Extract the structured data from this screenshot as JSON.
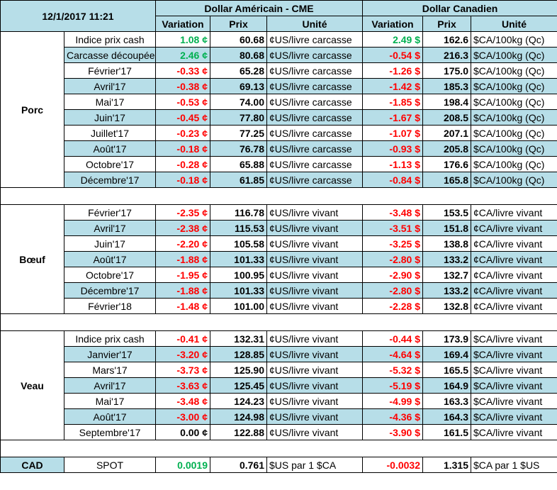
{
  "header": {
    "date": "12/1/2017 11:21",
    "us_title": "Dollar Américain - CME",
    "ca_title": "Dollar Canadien",
    "col_variation": "Variation",
    "col_prix": "Prix",
    "col_unite": "Unité"
  },
  "colors": {
    "negative": "#ff0000",
    "positive": "#00b050",
    "band": "#b7dee8"
  },
  "groups": [
    {
      "label": "Porc",
      "rows": [
        {
          "contract": "Indice prix cash",
          "us_var": "1.08 ¢",
          "us_sign": "pos",
          "us_price": "60.68",
          "us_unit": "¢US/livre carcasse",
          "ca_var": "2.49 $",
          "ca_sign": "pos",
          "ca_price": "162.6",
          "ca_unit": "$CA/100kg (Qc)"
        },
        {
          "contract": "Carcasse découpée",
          "us_var": "2.46 ¢",
          "us_sign": "pos",
          "us_price": "80.68",
          "us_unit": "¢US/livre carcasse",
          "ca_var": "-0.54 $",
          "ca_sign": "neg",
          "ca_price": "216.3",
          "ca_unit": "$CA/100kg (Qc)"
        },
        {
          "contract": "Février'17",
          "us_var": "-0.33 ¢",
          "us_sign": "neg",
          "us_price": "65.28",
          "us_unit": "¢US/livre carcasse",
          "ca_var": "-1.26 $",
          "ca_sign": "neg",
          "ca_price": "175.0",
          "ca_unit": "$CA/100kg (Qc)"
        },
        {
          "contract": "Avril'17",
          "us_var": "-0.38 ¢",
          "us_sign": "neg",
          "us_price": "69.13",
          "us_unit": "¢US/livre carcasse",
          "ca_var": "-1.42 $",
          "ca_sign": "neg",
          "ca_price": "185.3",
          "ca_unit": "$CA/100kg (Qc)"
        },
        {
          "contract": "Mai'17",
          "us_var": "-0.53 ¢",
          "us_sign": "neg",
          "us_price": "74.00",
          "us_unit": "¢US/livre carcasse",
          "ca_var": "-1.85 $",
          "ca_sign": "neg",
          "ca_price": "198.4",
          "ca_unit": "$CA/100kg (Qc)"
        },
        {
          "contract": "Juin'17",
          "us_var": "-0.45 ¢",
          "us_sign": "neg",
          "us_price": "77.80",
          "us_unit": "¢US/livre carcasse",
          "ca_var": "-1.67 $",
          "ca_sign": "neg",
          "ca_price": "208.5",
          "ca_unit": "$CA/100kg (Qc)"
        },
        {
          "contract": "Juillet'17",
          "us_var": "-0.23 ¢",
          "us_sign": "neg",
          "us_price": "77.25",
          "us_unit": "¢US/livre carcasse",
          "ca_var": "-1.07 $",
          "ca_sign": "neg",
          "ca_price": "207.1",
          "ca_unit": "$CA/100kg (Qc)"
        },
        {
          "contract": "Août'17",
          "us_var": "-0.18 ¢",
          "us_sign": "neg",
          "us_price": "76.78",
          "us_unit": "¢US/livre carcasse",
          "ca_var": "-0.93 $",
          "ca_sign": "neg",
          "ca_price": "205.8",
          "ca_unit": "$CA/100kg (Qc)"
        },
        {
          "contract": "Octobre'17",
          "us_var": "-0.28 ¢",
          "us_sign": "neg",
          "us_price": "65.88",
          "us_unit": "¢US/livre carcasse",
          "ca_var": "-1.13 $",
          "ca_sign": "neg",
          "ca_price": "176.6",
          "ca_unit": "$CA/100kg (Qc)"
        },
        {
          "contract": "Décembre'17",
          "us_var": "-0.18 ¢",
          "us_sign": "neg",
          "us_price": "61.85",
          "us_unit": "¢US/livre carcasse",
          "ca_var": "-0.84 $",
          "ca_sign": "neg",
          "ca_price": "165.8",
          "ca_unit": "$CA/100kg (Qc)"
        }
      ]
    },
    {
      "label": "Bœuf",
      "rows": [
        {
          "contract": "Février'17",
          "us_var": "-2.35 ¢",
          "us_sign": "neg",
          "us_price": "116.78",
          "us_unit": "¢US/livre vivant",
          "ca_var": "-3.48 $",
          "ca_sign": "neg",
          "ca_price": "153.5",
          "ca_unit": "¢CA/livre vivant"
        },
        {
          "contract": "Avril'17",
          "us_var": "-2.38 ¢",
          "us_sign": "neg",
          "us_price": "115.53",
          "us_unit": "¢US/livre vivant",
          "ca_var": "-3.51 $",
          "ca_sign": "neg",
          "ca_price": "151.8",
          "ca_unit": "¢CA/livre vivant"
        },
        {
          "contract": "Juin'17",
          "us_var": "-2.20 ¢",
          "us_sign": "neg",
          "us_price": "105.58",
          "us_unit": "¢US/livre vivant",
          "ca_var": "-3.25 $",
          "ca_sign": "neg",
          "ca_price": "138.8",
          "ca_unit": "¢CA/livre vivant"
        },
        {
          "contract": "Août'17",
          "us_var": "-1.88 ¢",
          "us_sign": "neg",
          "us_price": "101.33",
          "us_unit": "¢US/livre vivant",
          "ca_var": "-2.80 $",
          "ca_sign": "neg",
          "ca_price": "133.2",
          "ca_unit": "¢CA/livre vivant"
        },
        {
          "contract": "Octobre'17",
          "us_var": "-1.95 ¢",
          "us_sign": "neg",
          "us_price": "100.95",
          "us_unit": "¢US/livre vivant",
          "ca_var": "-2.90 $",
          "ca_sign": "neg",
          "ca_price": "132.7",
          "ca_unit": "¢CA/livre vivant"
        },
        {
          "contract": "Décembre'17",
          "us_var": "-1.88 ¢",
          "us_sign": "neg",
          "us_price": "101.33",
          "us_unit": "¢US/livre vivant",
          "ca_var": "-2.80 $",
          "ca_sign": "neg",
          "ca_price": "133.2",
          "ca_unit": "¢CA/livre vivant"
        },
        {
          "contract": "Février'18",
          "us_var": "-1.48 ¢",
          "us_sign": "neg",
          "us_price": "101.00",
          "us_unit": "¢US/livre vivant",
          "ca_var": "-2.28 $",
          "ca_sign": "neg",
          "ca_price": "132.8",
          "ca_unit": "¢CA/livre vivant"
        }
      ]
    },
    {
      "label": "Veau",
      "rows": [
        {
          "contract": "Indice prix cash",
          "us_var": "-0.41 ¢",
          "us_sign": "neg",
          "us_price": "132.31",
          "us_unit": "¢US/livre vivant",
          "ca_var": "-0.44 $",
          "ca_sign": "neg",
          "ca_price": "173.9",
          "ca_unit": "$CA/livre vivant"
        },
        {
          "contract": "Janvier'17",
          "us_var": "-3.20 ¢",
          "us_sign": "neg",
          "us_price": "128.85",
          "us_unit": "¢US/livre vivant",
          "ca_var": "-4.64 $",
          "ca_sign": "neg",
          "ca_price": "169.4",
          "ca_unit": "$CA/livre vivant"
        },
        {
          "contract": "Mars'17",
          "us_var": "-3.73 ¢",
          "us_sign": "neg",
          "us_price": "125.90",
          "us_unit": "¢US/livre vivant",
          "ca_var": "-5.32 $",
          "ca_sign": "neg",
          "ca_price": "165.5",
          "ca_unit": "$CA/livre vivant"
        },
        {
          "contract": "Avril'17",
          "us_var": "-3.63 ¢",
          "us_sign": "neg",
          "us_price": "125.45",
          "us_unit": "¢US/livre vivant",
          "ca_var": "-5.19 $",
          "ca_sign": "neg",
          "ca_price": "164.9",
          "ca_unit": "$CA/livre vivant"
        },
        {
          "contract": "Mai'17",
          "us_var": "-3.48 ¢",
          "us_sign": "neg",
          "us_price": "124.23",
          "us_unit": "¢US/livre vivant",
          "ca_var": "-4.99 $",
          "ca_sign": "neg",
          "ca_price": "163.3",
          "ca_unit": "$CA/livre vivant"
        },
        {
          "contract": "Août'17",
          "us_var": "-3.00 ¢",
          "us_sign": "neg",
          "us_price": "124.98",
          "us_unit": "¢US/livre vivant",
          "ca_var": "-4.36 $",
          "ca_sign": "neg",
          "ca_price": "164.3",
          "ca_unit": "$CA/livre vivant"
        },
        {
          "contract": "Septembre'17",
          "us_var": "0.00 ¢",
          "us_sign": "zero",
          "us_price": "122.88",
          "us_unit": "¢US/livre vivant",
          "ca_var": "-3.90 $",
          "ca_sign": "neg",
          "ca_price": "161.5",
          "ca_unit": "$CA/livre vivant"
        }
      ]
    }
  ],
  "cad": {
    "label": "CAD",
    "contract": "SPOT",
    "us_var": "0.0019",
    "us_sign": "pos",
    "us_price": "0.761",
    "us_unit": "$US par 1 $CA",
    "ca_var": "-0.0032",
    "ca_sign": "neg",
    "ca_price": "1.315",
    "ca_unit": "$CA par 1 $US"
  }
}
